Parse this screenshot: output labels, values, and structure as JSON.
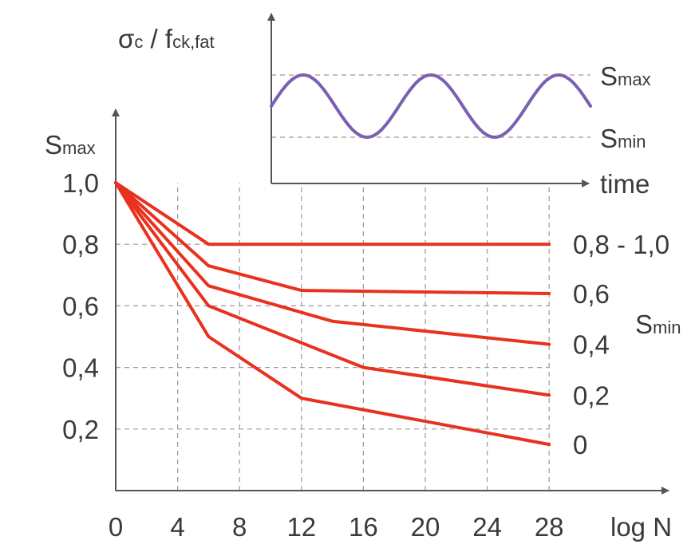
{
  "chart_data": [
    {
      "type": "line",
      "x_axis_label": "log N",
      "y_axis_label": {
        "main": "S",
        "sub": "max"
      },
      "x_ticks": [
        "0",
        "4",
        "8",
        "12",
        "16",
        "20",
        "24",
        "28"
      ],
      "y_ticks": [
        "0,2",
        "0,4",
        "0,6",
        "0,8",
        "1,0"
      ],
      "xlim": [
        0,
        32
      ],
      "ylim": [
        0,
        1.1
      ],
      "grid": true,
      "series_group_label": {
        "main": "S",
        "sub": "min"
      },
      "color": "#e8311f",
      "series": [
        {
          "name": "0,8 - 1,0",
          "x": [
            0,
            6,
            28
          ],
          "y": [
            1.0,
            0.8,
            0.8
          ]
        },
        {
          "name": "0,6",
          "x": [
            0,
            6,
            12,
            28
          ],
          "y": [
            1.0,
            0.73,
            0.65,
            0.64
          ]
        },
        {
          "name": "0,4",
          "x": [
            0,
            6,
            14,
            28
          ],
          "y": [
            1.0,
            0.665,
            0.55,
            0.475
          ]
        },
        {
          "name": "0,2",
          "x": [
            0,
            6,
            16,
            28
          ],
          "y": [
            1.0,
            0.6,
            0.4,
            0.31
          ]
        },
        {
          "name": "0",
          "x": [
            0,
            6,
            12,
            28
          ],
          "y": [
            1.0,
            0.5,
            0.3,
            0.15
          ]
        }
      ]
    },
    {
      "type": "line",
      "title": {
        "sigma": "σ",
        "sigma_sub": "c",
        "slash": " / f",
        "f_sub": "ck,fat"
      },
      "x_axis_label": "time",
      "level_labels": [
        {
          "main": "S",
          "sub": "max"
        },
        {
          "main": "S",
          "sub": "min"
        }
      ],
      "grid": true,
      "color": "#7b5fb3",
      "wave": {
        "periods": 2.5,
        "start_phase": "mean"
      }
    }
  ]
}
